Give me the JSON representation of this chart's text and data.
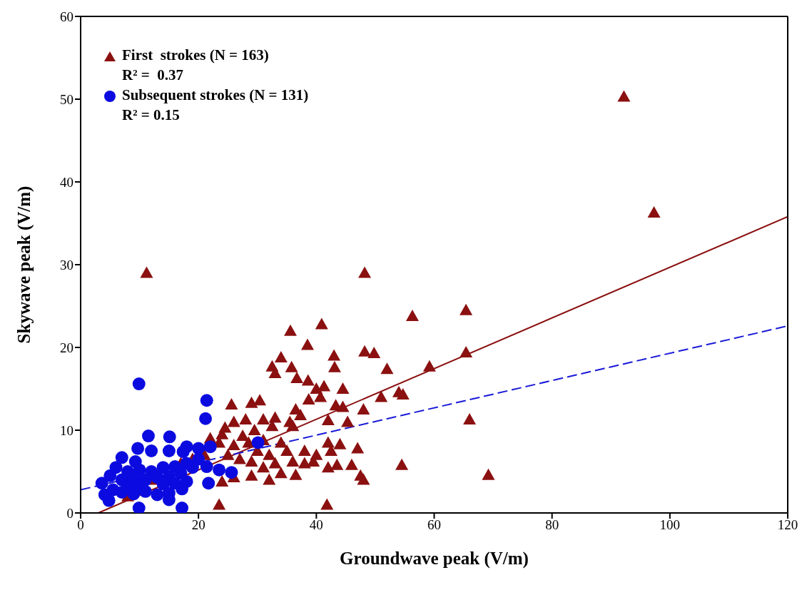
{
  "chart_data": {
    "type": "scatter",
    "xlabel": "Groundwave peak (V/m)",
    "ylabel": "Skywave peak (V/m)",
    "xlim": [
      0,
      120
    ],
    "xticks": [
      0,
      20,
      40,
      60,
      80,
      100,
      120
    ],
    "ylim": [
      0,
      60
    ],
    "yticks": [
      0,
      10,
      20,
      30,
      40,
      50,
      60
    ],
    "legend": "top left",
    "annotations": [
      "R² =  0.37",
      "R² = 0.15"
    ],
    "series": [
      {
        "name": "First  strokes (N = 163)",
        "marker": "triangle",
        "color": "#8b1010",
        "x": [
          92.2,
          97.3,
          11.2,
          48.2,
          65.4,
          56.3,
          40.9,
          35.6,
          38.5,
          48.2,
          49.8,
          65.4,
          43,
          34,
          59.2,
          52,
          35.8,
          43.1,
          32.5,
          33,
          36.7,
          38.6,
          54,
          54.7,
          41.3,
          44.5,
          40,
          51,
          38.7,
          40.7,
          25.6,
          30.4,
          29,
          43.3,
          44.5,
          48,
          36.5,
          37.3,
          66,
          45.3,
          42,
          35.5,
          26,
          28,
          31,
          33,
          24.5,
          22,
          24,
          27.5,
          29.5,
          32.5,
          36,
          23.5,
          26,
          28.5,
          31,
          34,
          30,
          32,
          35,
          38,
          40,
          42.5,
          44,
          47,
          42,
          25,
          27,
          29,
          31,
          33,
          36,
          38,
          39.5,
          42,
          43.5,
          46,
          47.5,
          48,
          54.5,
          69.2,
          36.5,
          34,
          32,
          29,
          26,
          24,
          23.5,
          41.8,
          21,
          19,
          17,
          8,
          12
        ],
        "values": [
          50.3,
          36.3,
          29,
          29,
          24.5,
          23.8,
          22.8,
          22,
          20.3,
          19.5,
          19.3,
          19.4,
          19,
          18.8,
          17.7,
          17.4,
          17.6,
          17.6,
          17.7,
          16.9,
          16.3,
          16,
          14.6,
          14.3,
          15.3,
          15,
          15,
          14,
          13.7,
          14,
          13.1,
          13.6,
          13.3,
          13,
          12.8,
          12.5,
          12.5,
          11.8,
          11.3,
          11,
          11.2,
          11,
          11,
          11.3,
          11.3,
          11.5,
          10.3,
          9,
          9.5,
          9.3,
          10,
          10.5,
          10.5,
          8.5,
          8.2,
          8.5,
          8.8,
          8.5,
          7.5,
          7,
          7.5,
          7.5,
          7,
          7.5,
          8.3,
          7.8,
          8.5,
          7,
          6.5,
          6.2,
          5.5,
          6,
          6.2,
          6,
          6.2,
          5.5,
          5.8,
          5.8,
          4.5,
          4,
          5.8,
          4.6,
          4.6,
          4.8,
          4,
          4.5,
          4.3,
          3.8,
          1,
          1,
          7,
          6.5,
          6,
          2,
          4
        ]
      },
      {
        "name": "Subsequent strokes (N = 131)",
        "marker": "circle",
        "color": "#0b0be0",
        "x": [
          9.9,
          21.4,
          21.2,
          11.5,
          15.1,
          9.7,
          12,
          15,
          9.3,
          17.4,
          21.4,
          23.5,
          25.6,
          21.7,
          3.6,
          4.1,
          4.8,
          9.9,
          17.2,
          17.2,
          15,
          30.1,
          7,
          18,
          20,
          22,
          6,
          8,
          10,
          12,
          14,
          16,
          18,
          5,
          7,
          9,
          11,
          13,
          15,
          17,
          19,
          8,
          10,
          14,
          16,
          18,
          7,
          9,
          11,
          13,
          15,
          5.5,
          20
        ],
        "values": [
          15.6,
          13.6,
          11.4,
          9.3,
          9.2,
          7.8,
          7.5,
          7.5,
          6.2,
          7.4,
          5.6,
          5.2,
          4.9,
          3.6,
          3.6,
          2.2,
          1.5,
          0.6,
          0.6,
          2.9,
          1.6,
          8.5,
          6.7,
          8,
          7.8,
          8,
          5.5,
          5,
          5.2,
          5,
          5.5,
          5.6,
          6,
          4.5,
          4,
          4.2,
          4,
          4.3,
          4.4,
          4.8,
          5.5,
          3.2,
          3.3,
          3.5,
          3.6,
          3.8,
          2.5,
          2.3,
          2.6,
          2.2,
          2.4,
          2.8,
          6.5
        ]
      },
      {
        "type": "line",
        "line_style": "solid",
        "marker": "none",
        "color": "#8b1010",
        "x": [
          3,
          120
        ],
        "values": [
          0,
          35.8
        ]
      },
      {
        "type": "line",
        "line_style": "dashed",
        "marker": "none",
        "color": "#1a1ad8",
        "x": [
          0,
          120
        ],
        "values": [
          2.8,
          22.6
        ]
      }
    ]
  }
}
